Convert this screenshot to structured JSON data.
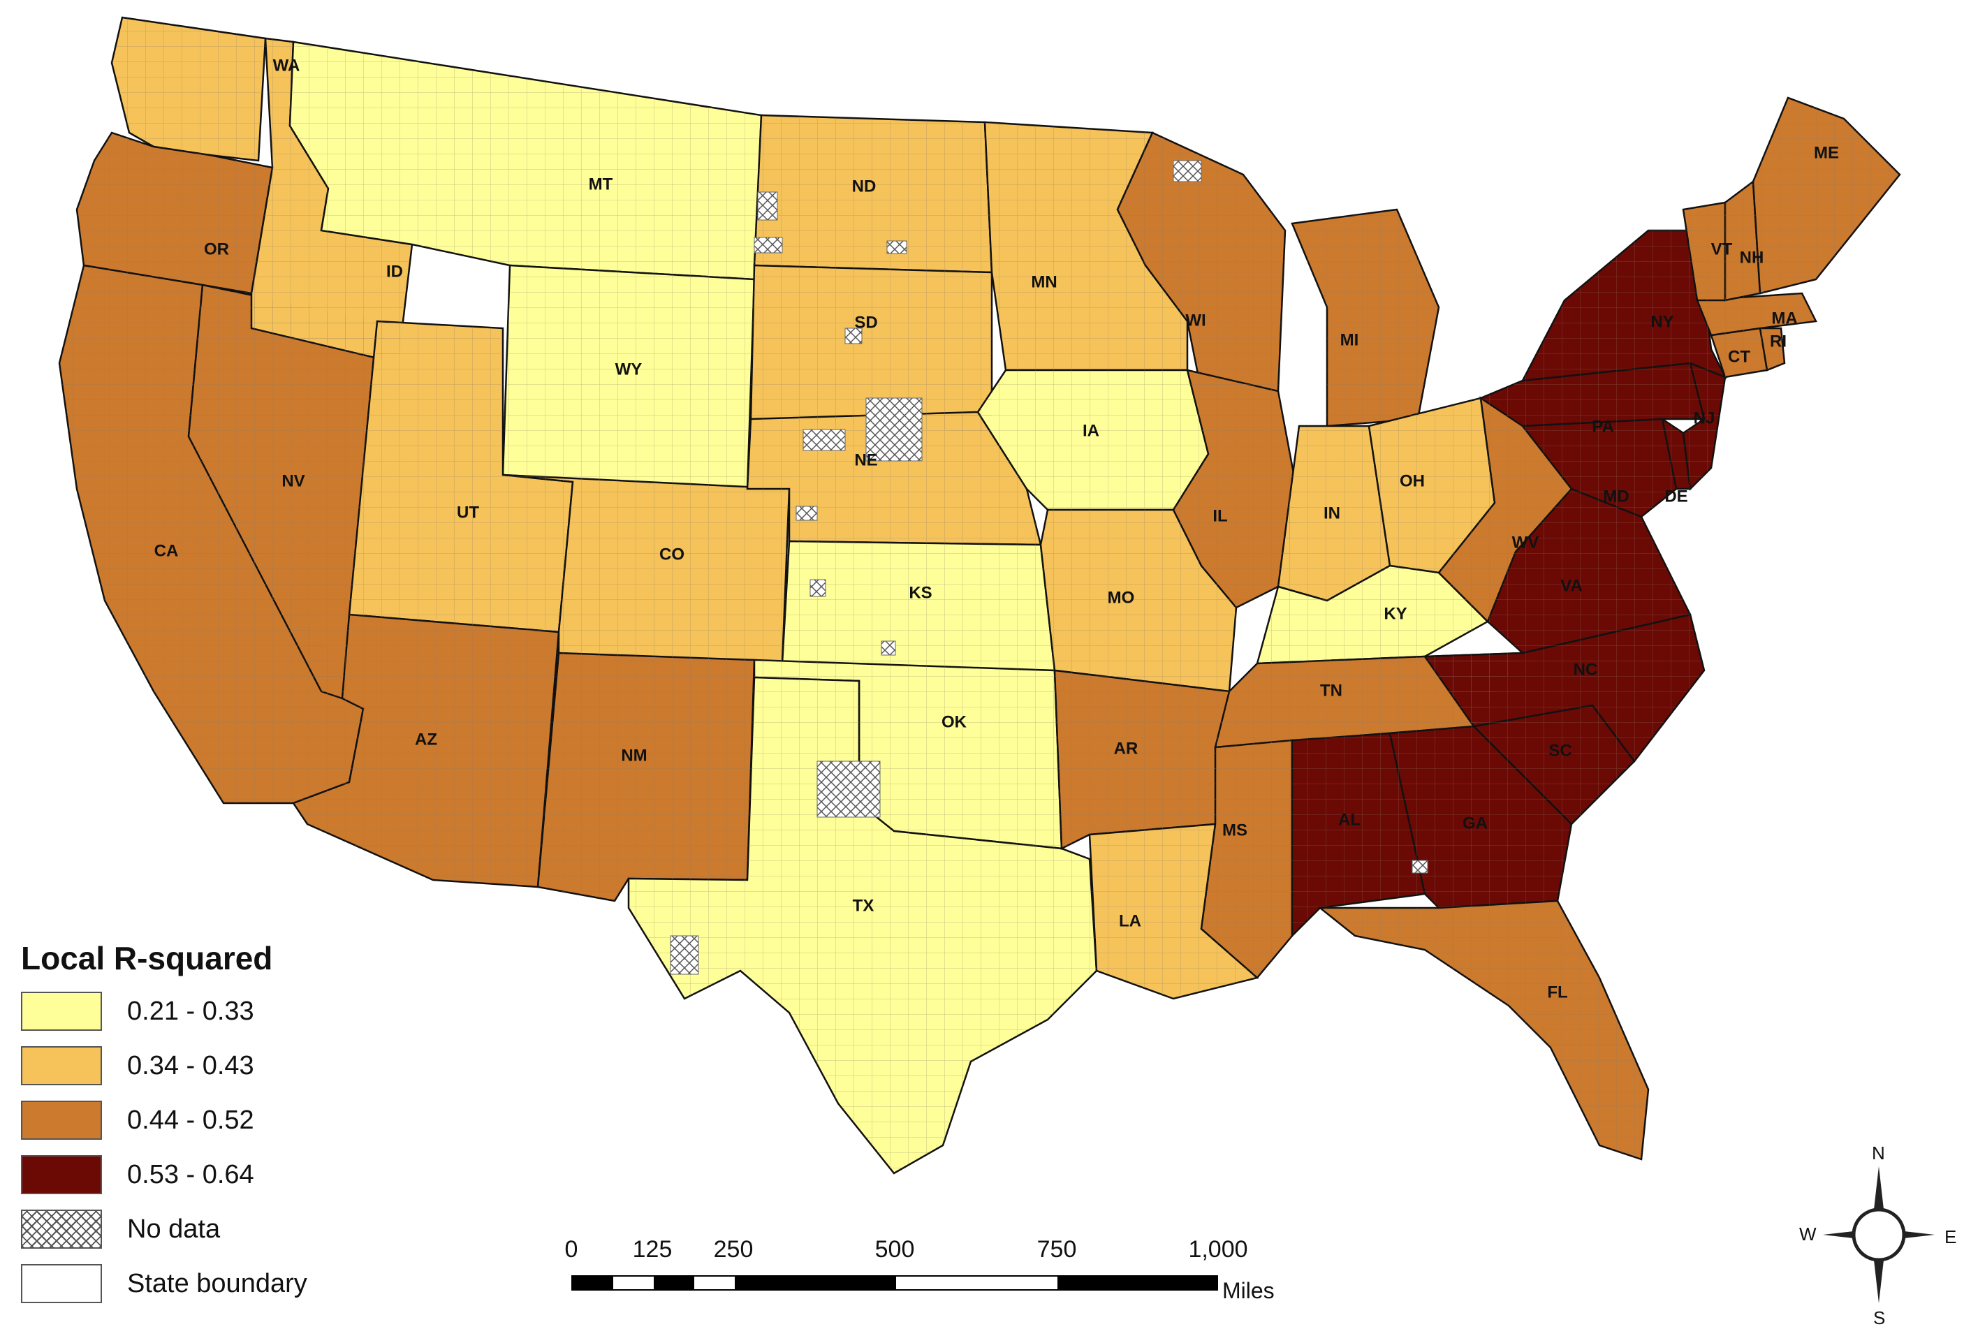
{
  "legend": {
    "title": "Local R-squared",
    "items": [
      {
        "label": "0.21 - 0.33",
        "color": "#ffff99"
      },
      {
        "label": "0.34 - 0.43",
        "color": "#f5c35a"
      },
      {
        "label": "0.44 - 0.52",
        "color": "#cc7a2e"
      },
      {
        "label": "0.53 - 0.64",
        "color": "#6b0a05"
      },
      {
        "label": "No data",
        "color": "crosshatch"
      },
      {
        "label": "State boundary",
        "color": "#ffffff"
      }
    ]
  },
  "scale": {
    "ticks": [
      "0",
      "125",
      "250",
      "500",
      "750",
      "1,000"
    ],
    "unit": "Miles"
  },
  "compass": {
    "n": "N",
    "s": "S",
    "e": "E",
    "w": "W"
  },
  "states": [
    {
      "abbr": "WA",
      "value": 0.4
    },
    {
      "abbr": "OR",
      "value": 0.48
    },
    {
      "abbr": "CA",
      "value": 0.48
    },
    {
      "abbr": "NV",
      "value": 0.48
    },
    {
      "abbr": "ID",
      "value": 0.38
    },
    {
      "abbr": "MT",
      "value": 0.27
    },
    {
      "abbr": "WY",
      "value": 0.27
    },
    {
      "abbr": "UT",
      "value": 0.38
    },
    {
      "abbr": "AZ",
      "value": 0.48
    },
    {
      "abbr": "CO",
      "value": 0.38
    },
    {
      "abbr": "NM",
      "value": 0.48
    },
    {
      "abbr": "ND",
      "value": 0.38
    },
    {
      "abbr": "SD",
      "value": 0.38
    },
    {
      "abbr": "NE",
      "value": 0.38
    },
    {
      "abbr": "KS",
      "value": 0.27
    },
    {
      "abbr": "OK",
      "value": 0.27
    },
    {
      "abbr": "TX",
      "value": 0.27
    },
    {
      "abbr": "MN",
      "value": 0.38
    },
    {
      "abbr": "IA",
      "value": 0.27
    },
    {
      "abbr": "MO",
      "value": 0.38
    },
    {
      "abbr": "AR",
      "value": 0.48
    },
    {
      "abbr": "LA",
      "value": 0.38
    },
    {
      "abbr": "WI",
      "value": 0.48
    },
    {
      "abbr": "IL",
      "value": 0.48
    },
    {
      "abbr": "MI",
      "value": 0.48
    },
    {
      "abbr": "IN",
      "value": 0.38
    },
    {
      "abbr": "OH",
      "value": 0.38
    },
    {
      "abbr": "KY",
      "value": 0.27
    },
    {
      "abbr": "TN",
      "value": 0.48
    },
    {
      "abbr": "MS",
      "value": 0.48
    },
    {
      "abbr": "AL",
      "value": 0.58
    },
    {
      "abbr": "GA",
      "value": 0.58
    },
    {
      "abbr": "FL",
      "value": 0.48
    },
    {
      "abbr": "SC",
      "value": 0.58
    },
    {
      "abbr": "NC",
      "value": 0.58
    },
    {
      "abbr": "VA",
      "value": 0.58
    },
    {
      "abbr": "WV",
      "value": 0.48
    },
    {
      "abbr": "MD",
      "value": 0.58
    },
    {
      "abbr": "DE",
      "value": 0.58
    },
    {
      "abbr": "PA",
      "value": 0.58
    },
    {
      "abbr": "NJ",
      "value": 0.58
    },
    {
      "abbr": "NY",
      "value": 0.58
    },
    {
      "abbr": "CT",
      "value": 0.48
    },
    {
      "abbr": "RI",
      "value": 0.48
    },
    {
      "abbr": "MA",
      "value": 0.48
    },
    {
      "abbr": "VT",
      "value": 0.48
    },
    {
      "abbr": "NH",
      "value": 0.48
    },
    {
      "abbr": "ME",
      "value": 0.48
    }
  ]
}
